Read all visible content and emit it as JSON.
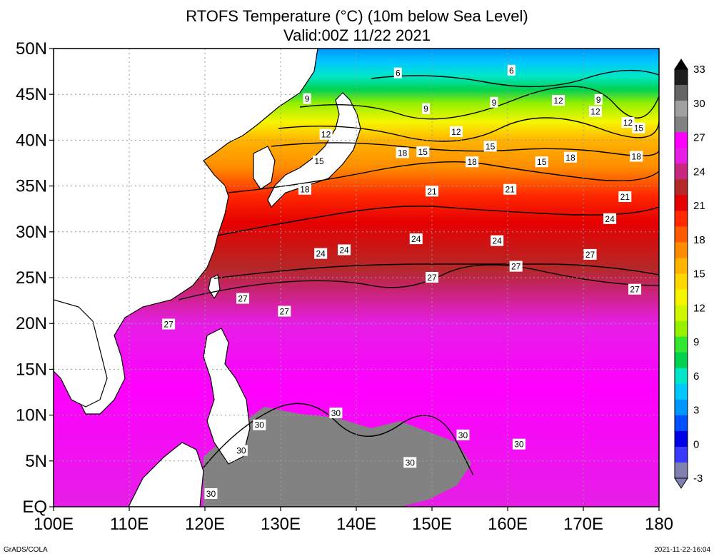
{
  "title_line1": "RTOFS Temperature (°C) (10m below Sea Level)",
  "title_line2": "Valid:00Z 11/22 2021",
  "footer_left": "GrADS/COLA",
  "footer_right": "2021-11-22-16:04",
  "chart_data": {
    "type": "heatmap",
    "lon_range": [
      100,
      180
    ],
    "lat_range": [
      0,
      50
    ],
    "x_ticks": [
      "100E",
      "110E",
      "120E",
      "130E",
      "140E",
      "150E",
      "160E",
      "170E",
      "180"
    ],
    "y_ticks": [
      "EQ",
      "5N",
      "10N",
      "15N",
      "20N",
      "25N",
      "30N",
      "35N",
      "40N",
      "45N",
      "50N"
    ],
    "grid": true,
    "colorbar": {
      "labels": [
        "-3",
        "0",
        "3",
        "6",
        "9",
        "12",
        "15",
        "18",
        "21",
        "24",
        "27",
        "30",
        "33"
      ],
      "colors": [
        "#7f7fb0",
        "#3a3aff",
        "#0000e6",
        "#0050ff",
        "#0096ff",
        "#00c8ff",
        "#00e6c8",
        "#00d250",
        "#32e632",
        "#96f000",
        "#d2f500",
        "#f5f500",
        "#ffd700",
        "#ffb400",
        "#ff8c00",
        "#ff5a00",
        "#ff2800",
        "#e60000",
        "#b42828",
        "#c8287d",
        "#e61ee6",
        "#ff00ff",
        "#828282",
        "#a0a0a0",
        "#646464",
        "#1e1e1e"
      ]
    },
    "contour_labels": [
      {
        "value": "6",
        "lon": 145.5,
        "lat": 47.3
      },
      {
        "value": "6",
        "lon": 160.5,
        "lat": 47.6
      },
      {
        "value": "9",
        "lon": 133.5,
        "lat": 44.5
      },
      {
        "value": "9",
        "lon": 149.2,
        "lat": 43.4
      },
      {
        "value": "9",
        "lon": 158.2,
        "lat": 44.1
      },
      {
        "value": "9",
        "lon": 172.0,
        "lat": 44.4
      },
      {
        "value": "12",
        "lon": 136.0,
        "lat": 40.6
      },
      {
        "value": "12",
        "lon": 153.2,
        "lat": 40.9
      },
      {
        "value": "12",
        "lon": 166.7,
        "lat": 44.3
      },
      {
        "value": "12",
        "lon": 171.6,
        "lat": 43.1
      },
      {
        "value": "12",
        "lon": 175.9,
        "lat": 41.9
      },
      {
        "value": "15",
        "lon": 135.1,
        "lat": 37.7
      },
      {
        "value": "15",
        "lon": 148.8,
        "lat": 38.7
      },
      {
        "value": "15",
        "lon": 157.7,
        "lat": 39.3
      },
      {
        "value": "15",
        "lon": 164.5,
        "lat": 37.6
      },
      {
        "value": "15",
        "lon": 177.3,
        "lat": 41.3
      },
      {
        "value": "18",
        "lon": 133.2,
        "lat": 34.6
      },
      {
        "value": "18",
        "lon": 146.1,
        "lat": 38.6
      },
      {
        "value": "18",
        "lon": 155.3,
        "lat": 37.6
      },
      {
        "value": "18",
        "lon": 168.3,
        "lat": 38.1
      },
      {
        "value": "18",
        "lon": 177.0,
        "lat": 38.2
      },
      {
        "value": "21",
        "lon": 150.0,
        "lat": 34.4
      },
      {
        "value": "21",
        "lon": 160.3,
        "lat": 34.6
      },
      {
        "value": "21",
        "lon": 175.5,
        "lat": 33.8
      },
      {
        "value": "24",
        "lon": 135.3,
        "lat": 27.6
      },
      {
        "value": "24",
        "lon": 138.4,
        "lat": 28.0
      },
      {
        "value": "24",
        "lon": 147.9,
        "lat": 29.2
      },
      {
        "value": "24",
        "lon": 158.6,
        "lat": 29.0
      },
      {
        "value": "24",
        "lon": 173.5,
        "lat": 31.4
      },
      {
        "value": "27",
        "lon": 115.2,
        "lat": 19.9
      },
      {
        "value": "27",
        "lon": 125.0,
        "lat": 22.7
      },
      {
        "value": "27",
        "lon": 130.5,
        "lat": 21.3
      },
      {
        "value": "27",
        "lon": 150.0,
        "lat": 25.0
      },
      {
        "value": "27",
        "lon": 161.1,
        "lat": 26.2
      },
      {
        "value": "27",
        "lon": 170.9,
        "lat": 27.5
      },
      {
        "value": "27",
        "lon": 176.8,
        "lat": 23.7
      },
      {
        "value": "30",
        "lon": 124.8,
        "lat": 6.1
      },
      {
        "value": "30",
        "lon": 137.3,
        "lat": 10.2
      },
      {
        "value": "30",
        "lon": 147.1,
        "lat": 4.8
      },
      {
        "value": "30",
        "lon": 154.1,
        "lat": 7.8
      },
      {
        "value": "30",
        "lon": 161.5,
        "lat": 6.8
      },
      {
        "value": "30",
        "lon": 127.2,
        "lat": 8.9
      },
      {
        "value": "30",
        "lon": 120.8,
        "lat": 1.4
      }
    ]
  }
}
